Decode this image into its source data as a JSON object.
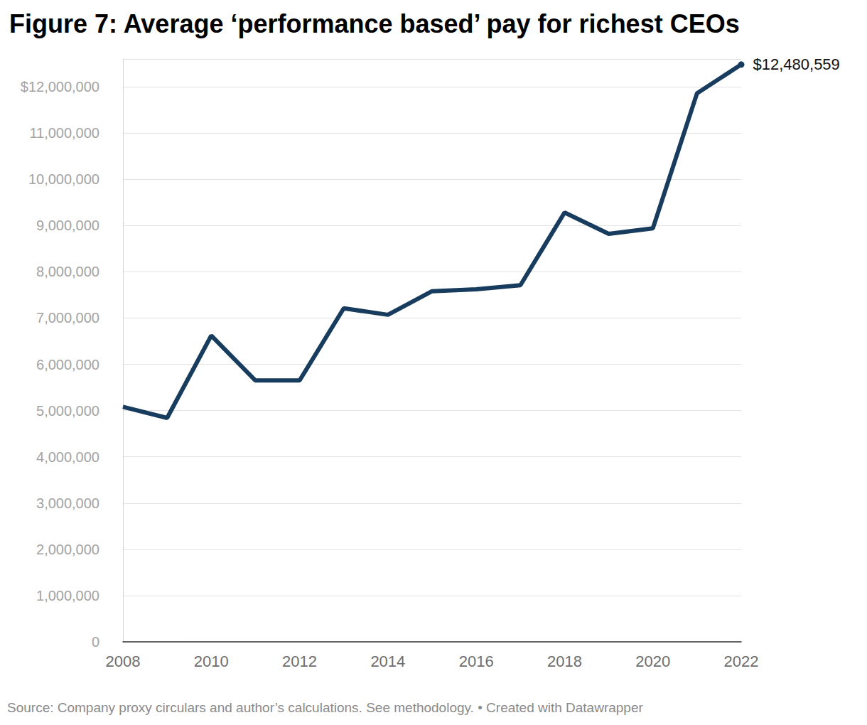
{
  "chart_data": {
    "type": "line",
    "title": "Figure 7: Average ‘performance based’ pay for richest CEOs",
    "source": "Source: Company proxy circulars and author’s calculations. See methodology. • Created with Datawrapper",
    "x": [
      2008,
      2009,
      2010,
      2011,
      2012,
      2013,
      2014,
      2015,
      2016,
      2017,
      2018,
      2019,
      2020,
      2021,
      2022
    ],
    "values": [
      5080000,
      4840000,
      6620000,
      5650000,
      5650000,
      7210000,
      7070000,
      7580000,
      7620000,
      7710000,
      9280000,
      8820000,
      8940000,
      11860000,
      12480559
    ],
    "color": "#173c5e",
    "xlim": [
      2008,
      2022
    ],
    "xticks": [
      2008,
      2010,
      2012,
      2014,
      2016,
      2018,
      2020,
      2022
    ],
    "ylim": [
      0,
      12600000
    ],
    "yticks": [
      0,
      {
        "value": 1000000,
        "label": "1,000,000"
      },
      {
        "value": 2000000,
        "label": "2,000,000"
      },
      {
        "value": 3000000,
        "label": "3,000,000"
      },
      {
        "value": 4000000,
        "label": "4,000,000"
      },
      {
        "value": 5000000,
        "label": "5,000,000"
      },
      {
        "value": 6000000,
        "label": "6,000,000"
      },
      {
        "value": 7000000,
        "label": "7,000,000"
      },
      {
        "value": 8000000,
        "label": "8,000,000"
      },
      {
        "value": 9000000,
        "label": "9,000,000"
      },
      {
        "value": 10000000,
        "label": "10,000,000"
      },
      {
        "value": 11000000,
        "label": "11,000,000"
      },
      {
        "value": 12000000,
        "label": "$12,000,000"
      }
    ],
    "grid": true,
    "annotations": [
      {
        "x": 2022,
        "y": 12480559,
        "text": "$12,480,559"
      }
    ]
  }
}
